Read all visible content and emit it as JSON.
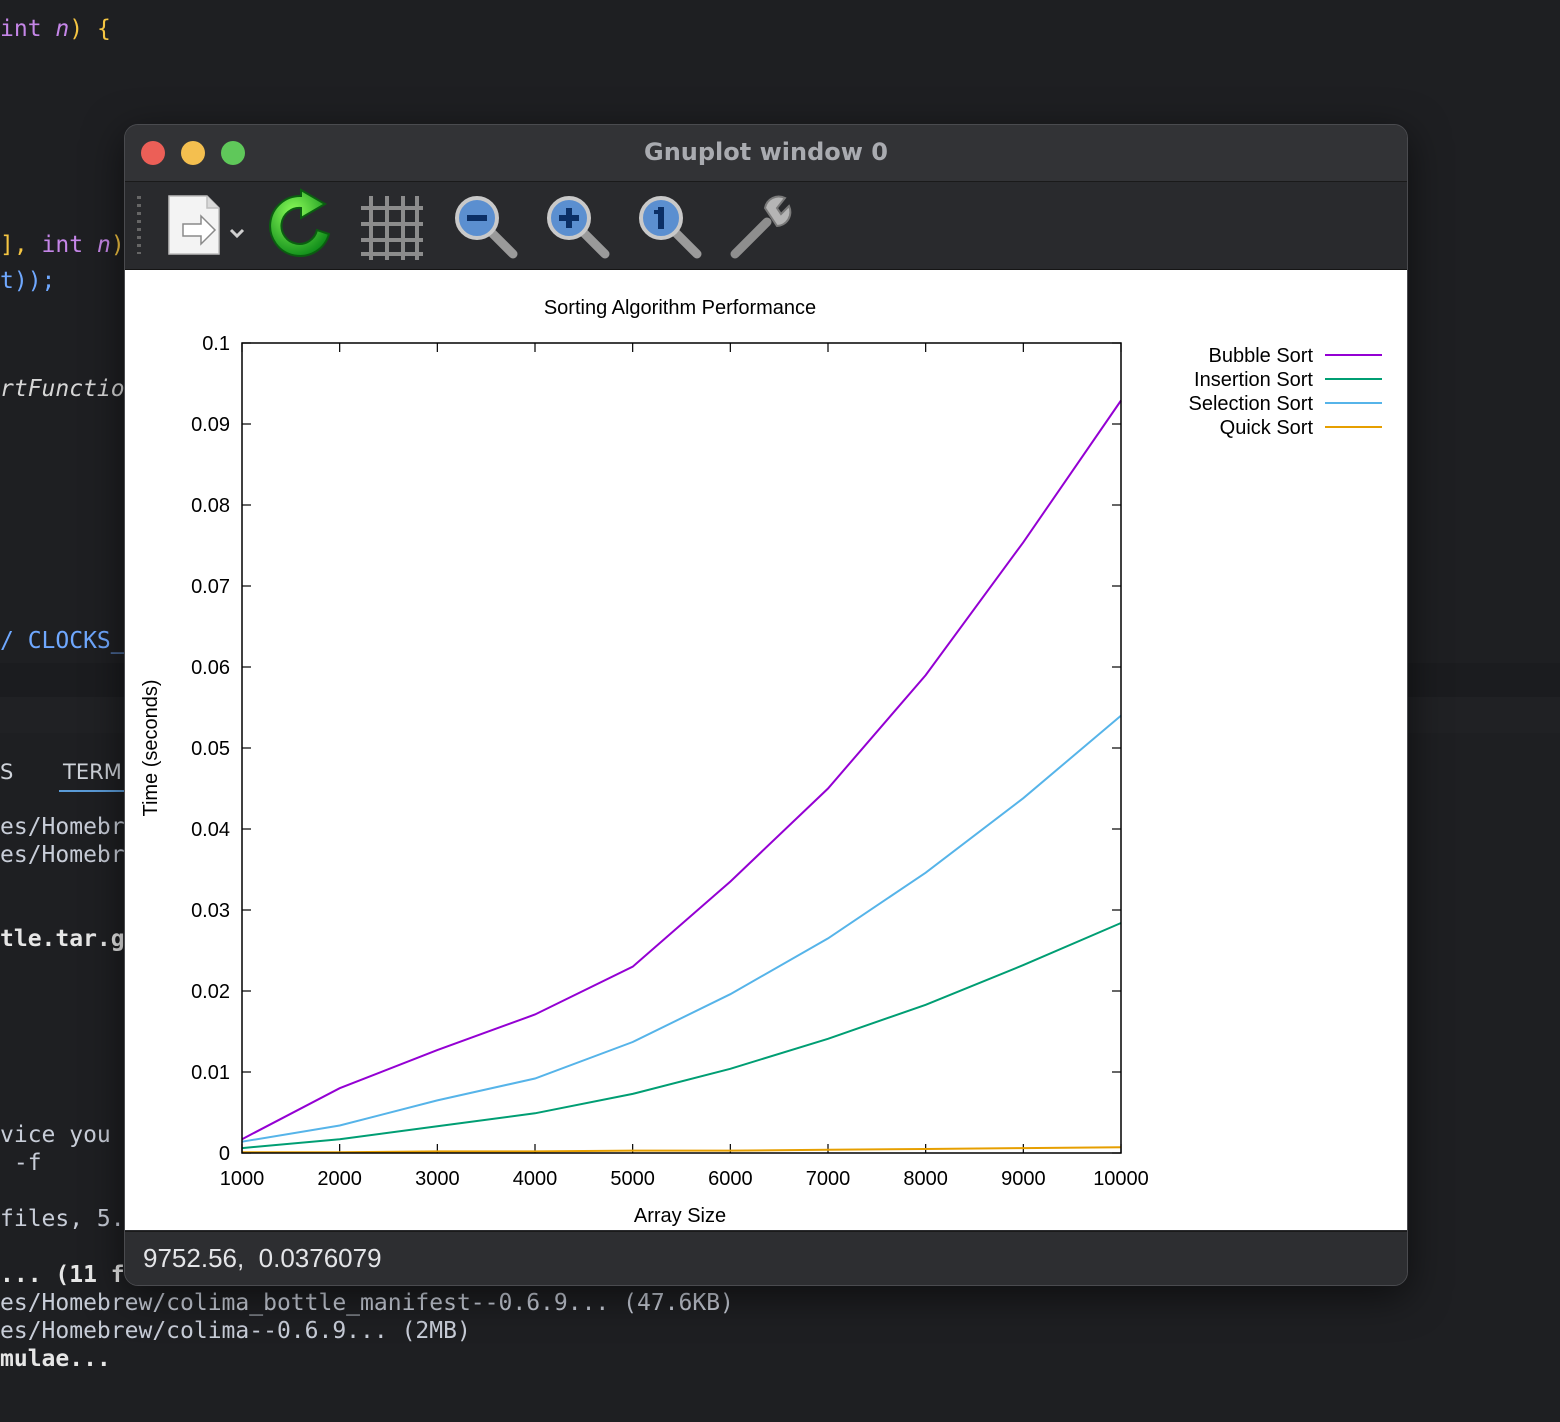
{
  "editor": {
    "lines": [
      {
        "a": "",
        "kw": "int",
        "b": " ",
        "it": "n",
        "c": ")",
        "d": " {"
      },
      {
        "a": "], ",
        "kw": "int",
        "b": " ",
        "it": "n",
        "c": ")"
      },
      {
        "text": "t));"
      },
      {
        "text": "rtFunctio"
      },
      {
        "text": "/ CLOCKS_"
      }
    ]
  },
  "terminal": {
    "tab_partial_left": "S",
    "tab_terminal": "TERM",
    "lines": [
      "es/Homebr",
      "es/Homebr",
      "tle.tar.g",
      "vice you",
      " -f",
      "files, 5.",
      "... (11 f",
      "es/Homebrew/colima_bottle_manifest--0.6.9... (47.6KB)",
      "es/Homebrew/colima--0.6.9... (2MB)",
      "mulae..."
    ]
  },
  "window": {
    "title": "Gnuplot window 0",
    "toolbar": [
      {
        "name": "export-icon"
      },
      {
        "name": "replot-icon"
      },
      {
        "name": "grid-icon"
      },
      {
        "name": "zoom-out-icon"
      },
      {
        "name": "zoom-in-icon"
      },
      {
        "name": "zoom-reset-icon"
      },
      {
        "name": "settings-wrench-icon"
      }
    ],
    "status": "9752.56,  0.0376079"
  },
  "chart_data": {
    "type": "line",
    "title": "Sorting Algorithm Performance",
    "xlabel": "Array Size",
    "ylabel": "Time (seconds)",
    "xlim": [
      1000,
      10000
    ],
    "ylim": [
      0,
      0.1
    ],
    "xticks": [
      1000,
      2000,
      3000,
      4000,
      5000,
      6000,
      7000,
      8000,
      9000,
      10000
    ],
    "yticks": [
      "0",
      "0.01",
      "0.02",
      "0.03",
      "0.04",
      "0.05",
      "0.06",
      "0.07",
      "0.08",
      "0.09",
      "0.1"
    ],
    "x": [
      1000,
      2000,
      3000,
      4000,
      5000,
      6000,
      7000,
      8000,
      9000,
      10000
    ],
    "legend_position": "outside-top-right",
    "grid": false,
    "series": [
      {
        "name": "Bubble Sort",
        "color": "#9400d3",
        "values": [
          0.0017,
          0.008,
          0.0127,
          0.0171,
          0.023,
          0.0335,
          0.045,
          0.059,
          0.0754,
          0.0929
        ]
      },
      {
        "name": "Insertion Sort",
        "color": "#009e73",
        "values": [
          0.0006,
          0.0017,
          0.0033,
          0.0049,
          0.0073,
          0.0104,
          0.0141,
          0.0183,
          0.0232,
          0.0284
        ]
      },
      {
        "name": "Selection Sort",
        "color": "#56b4e9",
        "values": [
          0.0014,
          0.0034,
          0.0065,
          0.0092,
          0.0137,
          0.0196,
          0.0265,
          0.0346,
          0.0438,
          0.054
        ]
      },
      {
        "name": "Quick Sort",
        "color": "#e69f00",
        "values": [
          0.0001,
          0.0001,
          0.0002,
          0.0002,
          0.0003,
          0.0003,
          0.0004,
          0.0005,
          0.0006,
          0.0007
        ]
      }
    ]
  }
}
